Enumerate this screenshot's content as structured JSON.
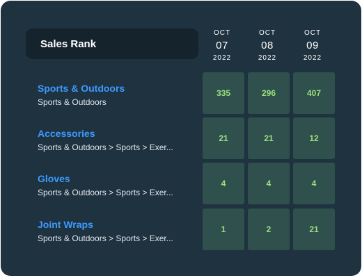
{
  "widget": {
    "title": "Sales Rank",
    "dates": [
      {
        "month": "OCT",
        "day": "07",
        "year": "2022"
      },
      {
        "month": "OCT",
        "day": "08",
        "year": "2022"
      },
      {
        "month": "OCT",
        "day": "09",
        "year": "2022"
      }
    ],
    "rows": [
      {
        "category": "Sports & Outdoors",
        "path": "Sports & Outdoors",
        "ranks": [
          "335",
          "296",
          "407"
        ]
      },
      {
        "category": "Accessories",
        "path": "Sports & Outdoors > Sports > Exer...",
        "ranks": [
          "21",
          "21",
          "12"
        ]
      },
      {
        "category": "Gloves",
        "path": "Sports & Outdoors > Sports > Exer...",
        "ranks": [
          "4",
          "4",
          "4"
        ]
      },
      {
        "category": "Joint Wraps",
        "path": "Sports & Outdoors > Sports > Exer...",
        "ranks": [
          "1",
          "2",
          "21"
        ]
      }
    ]
  },
  "colors": {
    "card_bg": "#1e3240",
    "title_bg": "#15232d",
    "category_link": "#3d9bff",
    "cell_bg": "#30504d",
    "cell_text": "#9be07e"
  }
}
